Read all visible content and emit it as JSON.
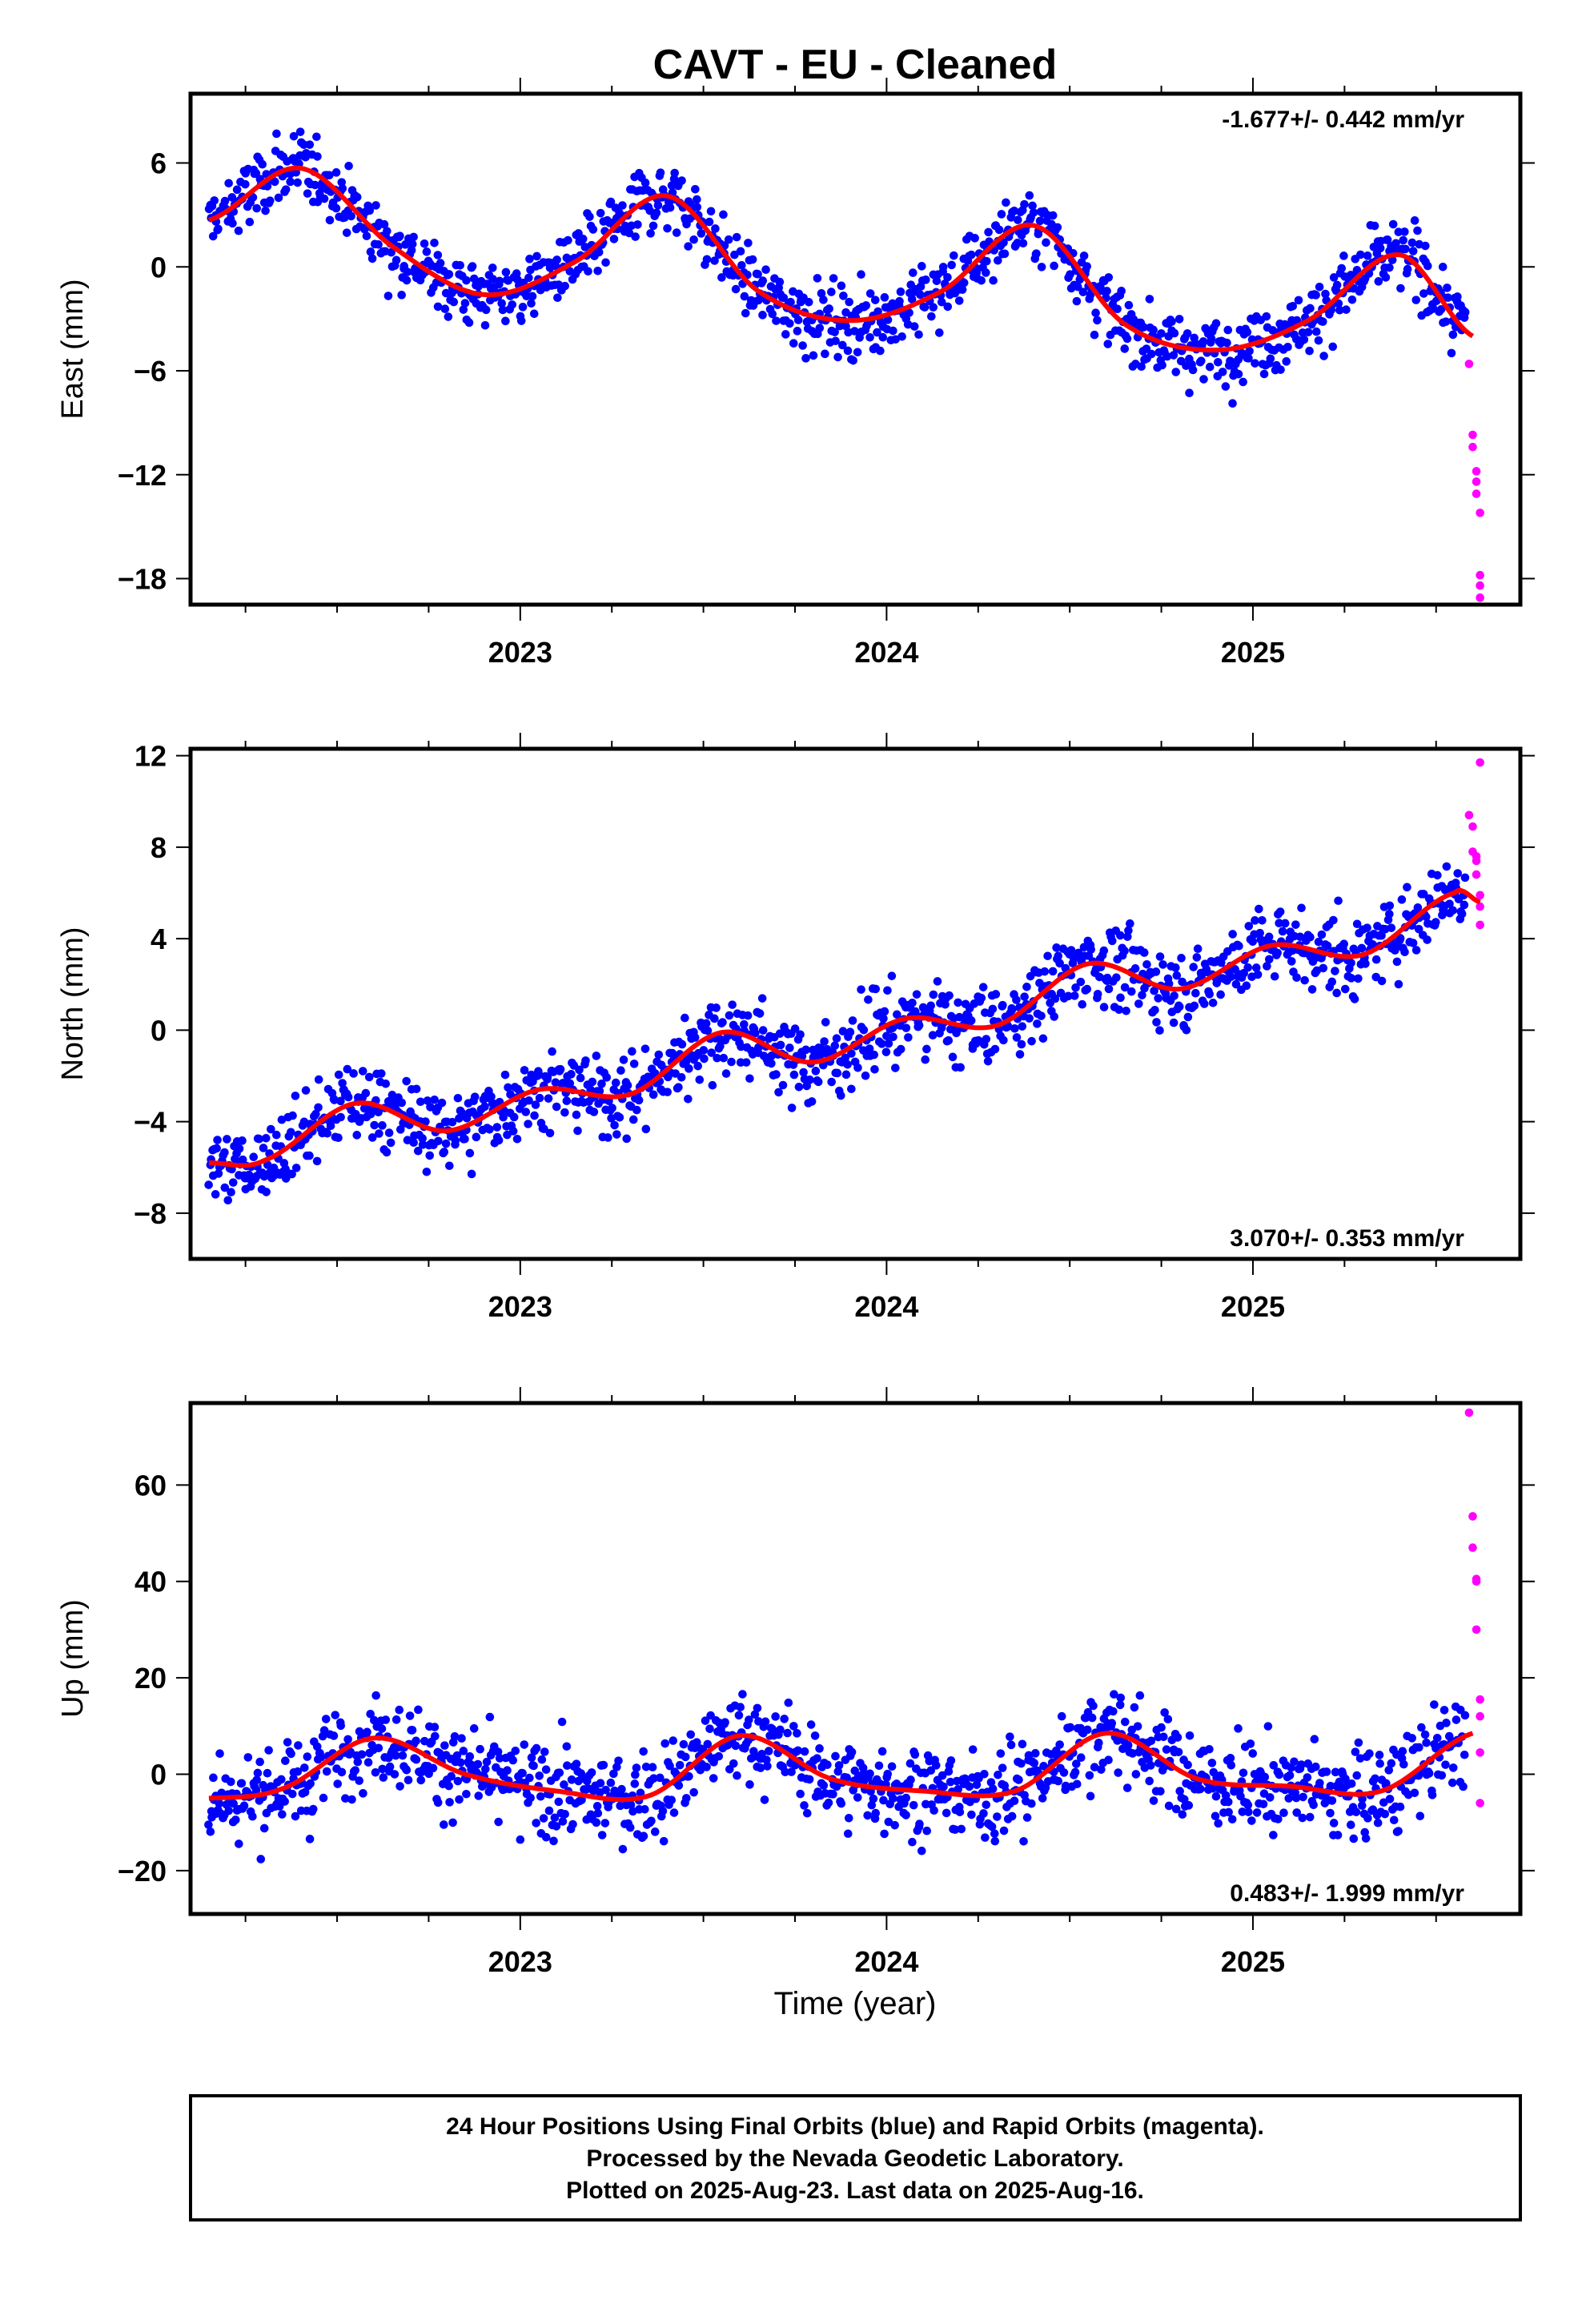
{
  "title": "CAVT  - EU - Cleaned",
  "xlabel": "Time (year)",
  "colors": {
    "final_orbits": "#0000ff",
    "rapid_orbits": "#ff00ff",
    "model": "#ff0000"
  },
  "footer": [
    "24 Hour Positions Using Final Orbits (blue) and Rapid Orbits (magenta).",
    "Processed by the Nevada Geodetic Laboratory.",
    "Plotted on 2025-Aug-23. Last data on 2025-Aug-16."
  ],
  "chart_data": [
    {
      "type": "scatter",
      "ylabel": "East (mm)",
      "rate_label": "-1.677+/- 0.442 mm/yr",
      "rate_position": "top-right",
      "xlim": [
        2022.1,
        2025.73
      ],
      "ylim": [
        -19.5,
        10
      ],
      "x_ticks": [
        2023,
        2024,
        2025
      ],
      "x_tick_labels": [
        "2023",
        "2024",
        "2025"
      ],
      "y_ticks": [
        6,
        0,
        -6,
        -12,
        -18
      ],
      "y_tick_labels": [
        "6",
        "0",
        "−6",
        "−12",
        "−18"
      ],
      "model": {
        "name": "red fit curve",
        "x": [
          2022.15,
          2022.4,
          2022.65,
          2022.9,
          2023.15,
          2023.4,
          2023.65,
          2023.9,
          2024.15,
          2024.4,
          2024.65,
          2024.9,
          2025.15,
          2025.4,
          2025.6
        ],
        "y": [
          2.7,
          5.7,
          1.2,
          -1.6,
          0.3,
          4.1,
          -1.4,
          -3.1,
          -1.4,
          2.4,
          -3.3,
          -4.8,
          -3.1,
          0.7,
          -4.0
        ]
      },
      "final_orbits": {
        "x_start": 2022.15,
        "x_end": 2025.58,
        "scatter_mm": 1.4
      },
      "rapid_orbits": {
        "x": [
          2025.59,
          2025.6,
          2025.6,
          2025.61,
          2025.61,
          2025.61,
          2025.62,
          2025.62,
          2025.62,
          2025.62
        ],
        "y": [
          -5.6,
          -9.7,
          -10.4,
          -11.8,
          -12.4,
          -13.1,
          -14.2,
          -17.8,
          -18.4,
          -19.1
        ]
      }
    },
    {
      "type": "scatter",
      "ylabel": "North (mm)",
      "rate_label": "3.070+/- 0.353 mm/yr",
      "rate_position": "bottom-right",
      "xlim": [
        2022.1,
        2025.73
      ],
      "ylim": [
        -10,
        12.3
      ],
      "x_ticks": [
        2023,
        2024,
        2025
      ],
      "x_tick_labels": [
        "2023",
        "2024",
        "2025"
      ],
      "y_ticks": [
        12,
        8,
        4,
        0,
        -4,
        -8
      ],
      "y_tick_labels": [
        "12",
        "8",
        "4",
        "0",
        "−4",
        "−8"
      ],
      "model": {
        "name": "red fit curve",
        "x": [
          2022.15,
          2022.3,
          2022.55,
          2022.8,
          2023.05,
          2023.3,
          2023.55,
          2023.8,
          2024.05,
          2024.3,
          2024.55,
          2024.8,
          2025.05,
          2025.3,
          2025.55,
          2025.62
        ],
        "y": [
          -5.8,
          -5.7,
          -3.2,
          -4.4,
          -2.6,
          -2.8,
          -0.1,
          -1.4,
          0.5,
          0.2,
          2.9,
          1.8,
          3.7,
          3.3,
          6.0,
          5.6
        ]
      },
      "final_orbits": {
        "x_start": 2022.15,
        "x_end": 2025.58,
        "scatter_mm": 1.2
      },
      "rapid_orbits": {
        "x": [
          2025.59,
          2025.6,
          2025.6,
          2025.61,
          2025.61,
          2025.61,
          2025.62,
          2025.62,
          2025.62,
          2025.62
        ],
        "y": [
          9.4,
          8.9,
          7.8,
          7.6,
          7.4,
          6.8,
          5.9,
          5.4,
          4.6,
          11.7
        ]
      }
    },
    {
      "type": "scatter",
      "ylabel": "Up (mm)",
      "rate_label": "0.483+/- 1.999 mm/yr",
      "rate_position": "bottom-right",
      "xlim": [
        2022.1,
        2025.73
      ],
      "ylim": [
        -29,
        77
      ],
      "x_ticks": [
        2023,
        2024,
        2025
      ],
      "x_tick_labels": [
        "2023",
        "2024",
        "2025"
      ],
      "y_ticks": [
        60,
        40,
        20,
        0,
        -20
      ],
      "y_tick_labels": [
        "60",
        "40",
        "20",
        "0",
        "−20"
      ],
      "model": {
        "name": "red fit curve",
        "x": [
          2022.15,
          2022.35,
          2022.6,
          2022.85,
          2023.1,
          2023.35,
          2023.6,
          2023.85,
          2024.1,
          2024.35,
          2024.6,
          2024.85,
          2025.1,
          2025.35,
          2025.6
        ],
        "y": [
          -5,
          -3,
          7.5,
          0,
          -3.5,
          -4.5,
          8,
          -1,
          -3.5,
          -3.5,
          8.5,
          -1,
          -2.5,
          -3.5,
          8.5
        ]
      },
      "final_orbits": {
        "x_start": 2022.15,
        "x_end": 2025.58,
        "scatter_mm": 6.5
      },
      "rapid_orbits": {
        "x": [
          2025.59,
          2025.6,
          2025.6,
          2025.61,
          2025.61,
          2025.61,
          2025.62,
          2025.62,
          2025.62,
          2025.62
        ],
        "y": [
          75,
          53.5,
          47,
          40,
          40.5,
          30,
          15.5,
          12,
          4.5,
          -6
        ]
      }
    }
  ]
}
